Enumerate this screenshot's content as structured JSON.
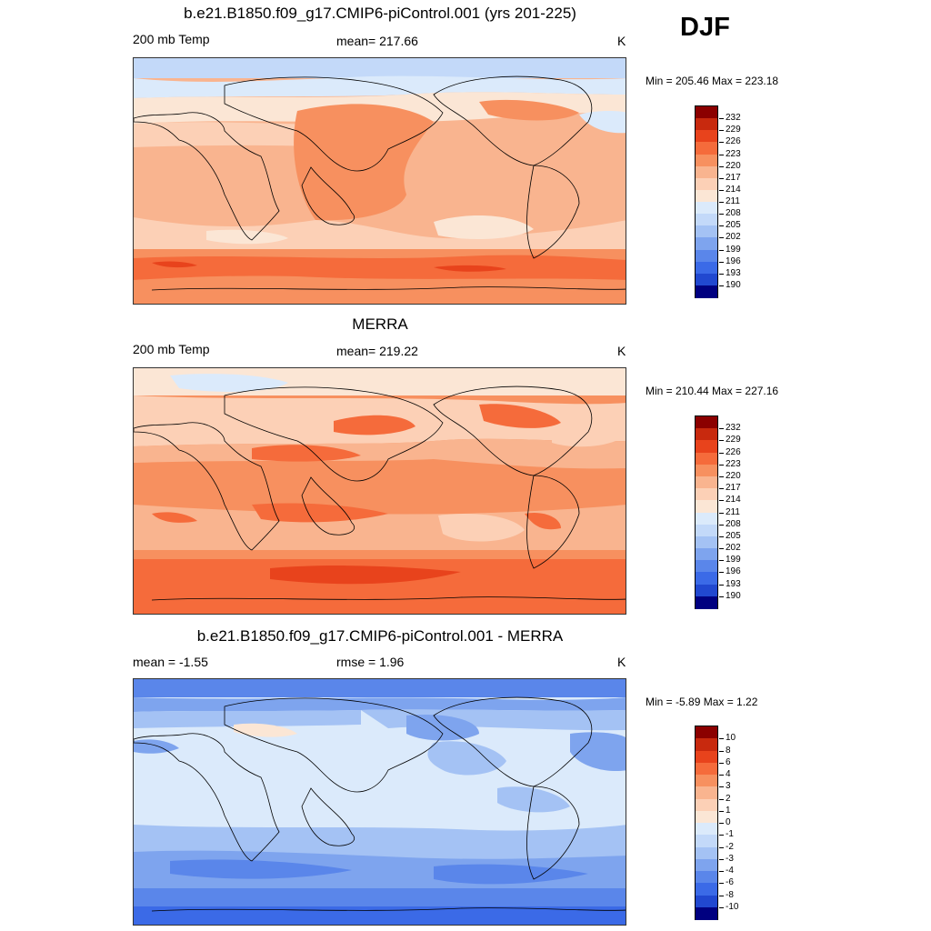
{
  "season": "DJF",
  "colors": {
    "warm": [
      "#fbe6d5",
      "#fcd0b6",
      "#f9b48f",
      "#f7905f",
      "#f56b3b",
      "#e8431c",
      "#c8290e",
      "#8b0000"
    ],
    "cool": [
      "#dbeafb",
      "#c3d9f9",
      "#a4c2f4",
      "#7ea4ee",
      "#5a86ea",
      "#3b6ae7",
      "#2148d0",
      "#1028a8",
      "#000080"
    ]
  },
  "panels": [
    {
      "title": "b.e21.B1850.f09_g17.CMIP6-piControl.001 (yrs 201-225)",
      "left_label": "200 mb Temp",
      "center_label": "mean= 217.66",
      "units": "K",
      "minmax": "Min = 205.46 Max = 223.18",
      "legend": {
        "levels": [
          "232",
          "229",
          "226",
          "223",
          "220",
          "217",
          "214",
          "211",
          "208",
          "205",
          "202",
          "199",
          "196",
          "193",
          "190"
        ],
        "colors": [
          "#8b0000",
          "#c8290e",
          "#e8431c",
          "#f56b3b",
          "#f7905f",
          "#f9b48f",
          "#fcd0b6",
          "#fbe6d5",
          "#dbeafb",
          "#c3d9f9",
          "#a4c2f4",
          "#7ea4ee",
          "#5a86ea",
          "#3b6ae7",
          "#2148d0",
          "#000080"
        ]
      }
    },
    {
      "title": "MERRA",
      "left_label": "200 mb Temp",
      "center_label": "mean= 219.22",
      "units": "K",
      "minmax": "Min = 210.44 Max = 227.16",
      "legend": {
        "levels": [
          "232",
          "229",
          "226",
          "223",
          "220",
          "217",
          "214",
          "211",
          "208",
          "205",
          "202",
          "199",
          "196",
          "193",
          "190"
        ],
        "colors": [
          "#8b0000",
          "#c8290e",
          "#e8431c",
          "#f56b3b",
          "#f7905f",
          "#f9b48f",
          "#fcd0b6",
          "#fbe6d5",
          "#dbeafb",
          "#c3d9f9",
          "#a4c2f4",
          "#7ea4ee",
          "#5a86ea",
          "#3b6ae7",
          "#2148d0",
          "#000080"
        ]
      }
    },
    {
      "title": "b.e21.B1850.f09_g17.CMIP6-piControl.001 - MERRA",
      "left_label": "mean =  -1.55",
      "center_label": "rmse =   1.96",
      "units": "K",
      "minmax": "Min =  -5.89 Max =   1.22",
      "legend": {
        "levels": [
          "10",
          "8",
          "6",
          "4",
          "3",
          "2",
          "1",
          "0",
          "-1",
          "-2",
          "-3",
          "-4",
          "-6",
          "-8",
          "-10"
        ],
        "colors": [
          "#8b0000",
          "#c8290e",
          "#e8431c",
          "#f56b3b",
          "#f7905f",
          "#f9b48f",
          "#fcd0b6",
          "#fbe6d5",
          "#dbeafb",
          "#c3d9f9",
          "#a4c2f4",
          "#7ea4ee",
          "#5a86ea",
          "#3b6ae7",
          "#2148d0",
          "#000080"
        ]
      }
    }
  ]
}
